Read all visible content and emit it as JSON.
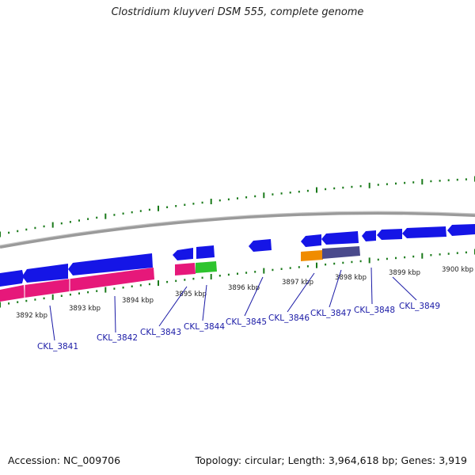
{
  "title": "Clostridium kluyveri DSM 555, complete genome",
  "accession_label": "Accession: NC_009706",
  "summary_label": "Topology: circular; Length: 3,964,618 bp; Genes: 3,919",
  "colors": {
    "forward_gene": "#1515e6",
    "reverse_gene": "#e6187a",
    "green_gene": "#2ec42e",
    "orange_gene": "#f08c00",
    "slate_gene": "#4a4a8c",
    "tick": "#1a7a1a",
    "backbone": "#8a8a8a",
    "label_line": "#1a1aa6"
  },
  "kbp_ticks": [
    "3892 kbp",
    "3893 kbp",
    "3894 kbp",
    "3895 kbp",
    "3896 kbp",
    "3897 kbp",
    "3898 kbp",
    "3899 kbp",
    "3900 kbp"
  ],
  "gene_labels": [
    "CKL_3841",
    "CKL_3842",
    "CKL_3843",
    "CKL_3844",
    "CKL_3845",
    "CKL_3846",
    "CKL_3847",
    "CKL_3848",
    "CKL_3849"
  ]
}
